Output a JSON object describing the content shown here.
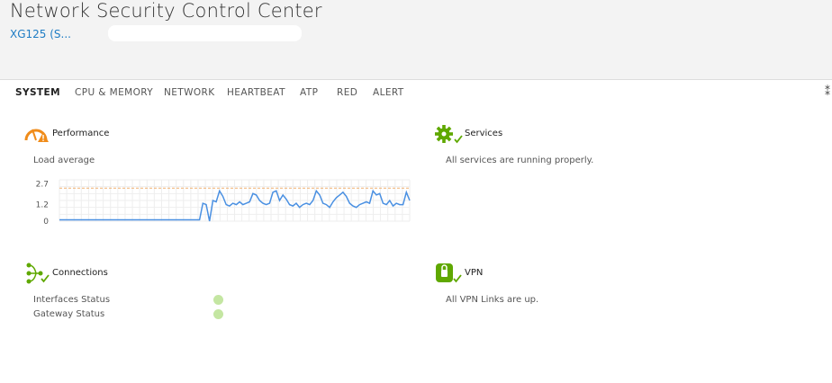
{
  "header": {
    "title": "Network Security Control Center",
    "device": "XG125 (S..."
  },
  "tabs": [
    {
      "label": "SYSTEM",
      "active": true
    },
    {
      "label": "CPU & MEMORY",
      "active": false
    },
    {
      "label": "NETWORK",
      "active": false
    },
    {
      "label": "HEARTBEAT",
      "active": false
    },
    {
      "label": "ATP",
      "active": false
    },
    {
      "label": "RED",
      "active": false
    },
    {
      "label": "ALERT",
      "active": false
    }
  ],
  "performance": {
    "title": "Performance",
    "subtitle": "Load average",
    "chart_data": {
      "type": "line",
      "yticks": [
        "2.7",
        "1.2",
        "0"
      ],
      "ylim": [
        0,
        3.0
      ],
      "threshold": 2.4,
      "series_color": "#4a90e2",
      "threshold_color": "#f0b070",
      "values": [
        0.1,
        0.1,
        0.1,
        0.1,
        0.1,
        0.1,
        0.1,
        0.1,
        0.1,
        0.1,
        0.1,
        0.1,
        0.1,
        0.1,
        0.1,
        0.1,
        0.1,
        0.1,
        0.1,
        0.1,
        0.1,
        0.1,
        0.1,
        0.1,
        0.1,
        0.1,
        0.1,
        0.1,
        0.1,
        0.1,
        0.1,
        0.1,
        0.1,
        0.1,
        0.1,
        0.1,
        0.1,
        0.1,
        0.1,
        0.1,
        0.1,
        0.1,
        0.1,
        1.3,
        1.2,
        0.0,
        1.5,
        1.4,
        2.2,
        1.8,
        1.2,
        1.1,
        1.3,
        1.2,
        1.4,
        1.2,
        1.3,
        1.4,
        2.0,
        1.9,
        1.5,
        1.3,
        1.2,
        1.3,
        2.1,
        2.2,
        1.5,
        1.9,
        1.6,
        1.2,
        1.1,
        1.3,
        1.0,
        1.2,
        1.3,
        1.2,
        1.5,
        2.2,
        1.9,
        1.3,
        1.2,
        1.0,
        1.4,
        1.7,
        1.9,
        2.1,
        1.8,
        1.3,
        1.1,
        1.0,
        1.2,
        1.3,
        1.4,
        1.3,
        2.2,
        1.9,
        2.0,
        1.3,
        1.2,
        1.5,
        1.1,
        1.3,
        1.2,
        1.2,
        2.1,
        1.5
      ]
    }
  },
  "services": {
    "title": "Services",
    "text": "All services are running properly."
  },
  "connections": {
    "title": "Connections",
    "rows": [
      {
        "label": "Interfaces Status"
      },
      {
        "label": "Gateway Status"
      }
    ]
  },
  "vpn": {
    "title": "VPN",
    "text": "All VPN Links are up."
  },
  "colors": {
    "accent_blue": "#1e7cc4",
    "green": "#5fa800",
    "orange": "#f08c1a",
    "status_green": "#c4e6a2"
  }
}
